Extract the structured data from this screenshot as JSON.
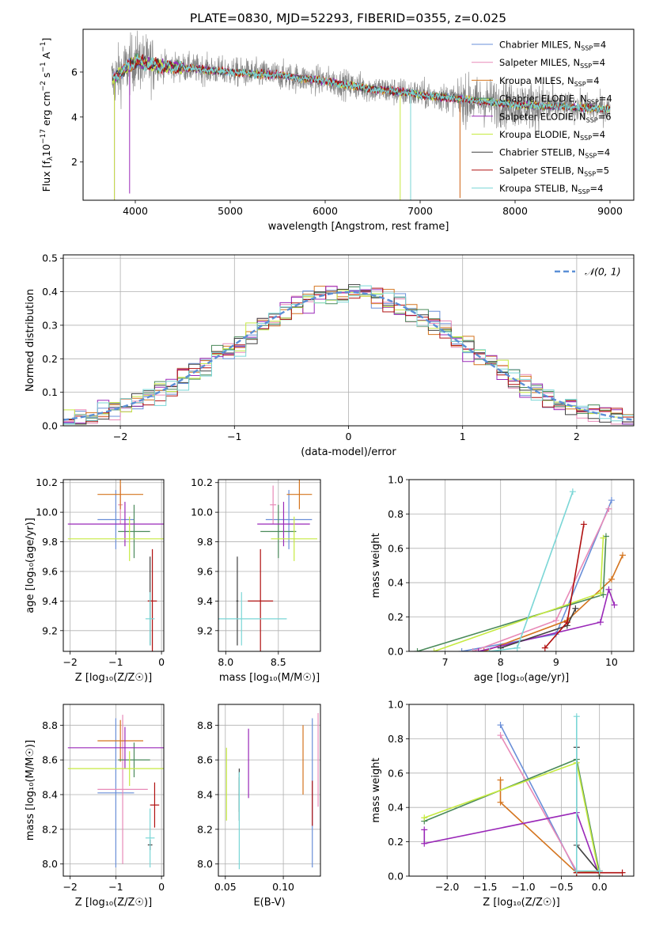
{
  "figure": {
    "title": "PLATE=0830, MJD=52293, FIBERID=0355, z=0.025"
  },
  "models": [
    {
      "name": "Chabrier MILES",
      "nssp": "4",
      "color": "#6a8fd8"
    },
    {
      "name": "Salpeter MILES",
      "nssp": "4",
      "color": "#e88ab8"
    },
    {
      "name": "Kroupa MILES",
      "nssp": "4",
      "color": "#d4741e"
    },
    {
      "name": "Chabrier ELODIE",
      "nssp": "4",
      "color": "#4a8a5a"
    },
    {
      "name": "Salpeter ELODIE",
      "nssp": "6",
      "color": "#9a28b8"
    },
    {
      "name": "Kroupa ELODIE",
      "nssp": "4",
      "color": "#c6ea40"
    },
    {
      "name": "Chabrier STELIB",
      "nssp": "4",
      "color": "#404040"
    },
    {
      "name": "Salpeter STELIB",
      "nssp": "5",
      "color": "#b01010"
    },
    {
      "name": "Kroupa STELIB",
      "nssp": "4",
      "color": "#7ad6d6"
    }
  ],
  "chart_data": [
    {
      "id": "spectrum",
      "type": "line",
      "xlabel": "wavelength [Angstrom, rest frame]",
      "ylabel_parts": [
        "Flux [f",
        "λ",
        "10",
        "−17",
        " erg cm",
        "−2",
        " s",
        "−1",
        " A",
        "−1",
        "]"
      ],
      "xlim": [
        3450,
        9250
      ],
      "ylim": [
        0.3,
        7.9
      ],
      "xticks": [
        4000,
        5000,
        6000,
        7000,
        8000,
        9000
      ],
      "yticks": [
        2,
        4,
        6
      ],
      "legend_position": "upper right",
      "observed_color": "#808080",
      "anchors": [
        {
          "x": 3750,
          "y": 5.6
        },
        {
          "x": 3850,
          "y": 6.0
        },
        {
          "x": 4000,
          "y": 6.5
        },
        {
          "x": 4200,
          "y": 6.3
        },
        {
          "x": 4500,
          "y": 6.2
        },
        {
          "x": 5000,
          "y": 6.0
        },
        {
          "x": 5500,
          "y": 5.85
        },
        {
          "x": 6000,
          "y": 5.6
        },
        {
          "x": 6500,
          "y": 5.25
        },
        {
          "x": 7000,
          "y": 5.0
        },
        {
          "x": 7500,
          "y": 4.75
        },
        {
          "x": 8000,
          "y": 4.55
        },
        {
          "x": 8500,
          "y": 4.45
        },
        {
          "x": 9000,
          "y": 4.35
        }
      ]
    },
    {
      "id": "residuals",
      "type": "step",
      "xlabel": "(data-model)/error",
      "ylabel": "Normed distribution",
      "xlim": [
        -2.5,
        2.5
      ],
      "ylim": [
        0,
        0.51
      ],
      "xticks": [
        -2,
        -1,
        0,
        1,
        2
      ],
      "xticklabels": [
        "−2",
        "−1",
        "0",
        "1",
        "2"
      ],
      "yticks": [
        0.0,
        0.1,
        0.2,
        0.3,
        0.4,
        0.5
      ],
      "yticklabels": [
        "0.0",
        "0.1",
        "0.2",
        "0.3",
        "0.4",
        "0.5"
      ],
      "grid": true,
      "legend": {
        "label": "𝒩(0, 1)",
        "position": "upper right",
        "color": "#5b8fd6"
      }
    },
    {
      "id": "age_vs_Z",
      "type": "scatter",
      "xlabel": "Z [log₁₀(Z/Z☉)]",
      "ylabel": "age  [log₁₀(age/yr)]",
      "xlim": [
        -2.15,
        0.05
      ],
      "ylim": [
        9.06,
        10.22
      ],
      "xticks": [
        -2,
        -1,
        0
      ],
      "xticklabels": [
        "−2",
        "−1",
        "0"
      ],
      "yticks": [
        9.2,
        9.4,
        9.6,
        9.8,
        10.0,
        10.2
      ],
      "yticklabels": [
        "9.2",
        "9.4",
        "9.6",
        "9.8",
        "10.0",
        "10.2"
      ],
      "grid": true,
      "points": [
        {
          "m": 0,
          "x": -1.0,
          "y": 9.95,
          "xerr": 0.4,
          "yerr": 0.2
        },
        {
          "m": 1,
          "x": -0.9,
          "y": 10.05,
          "xerr": 0.05,
          "yerr": 0.13
        },
        {
          "m": 2,
          "x": -0.9,
          "y": 10.12,
          "xerr": 0.5,
          "yerr": 0.1
        },
        {
          "m": 3,
          "x": -0.6,
          "y": 9.87,
          "xerr": 0.35,
          "yerr": 0.18
        },
        {
          "m": 4,
          "x": -0.8,
          "y": 9.92,
          "xerr": 1.25,
          "yerr": 0.15
        },
        {
          "m": 5,
          "x": -0.7,
          "y": 9.82,
          "xerr": 1.35,
          "yerr": 0.15
        },
        {
          "m": 6,
          "x": -0.25,
          "y": 9.4,
          "xerr": 0.05,
          "yerr": 0.3
        },
        {
          "m": 7,
          "x": -0.2,
          "y": 9.4,
          "xerr": 0.1,
          "yerr": 0.35
        },
        {
          "m": 8,
          "x": -0.25,
          "y": 9.28,
          "xerr": 0.1,
          "yerr": 0.18
        }
      ]
    },
    {
      "id": "age_vs_mass",
      "type": "scatter",
      "xlabel": "mass [log₁₀(M/M☉)]",
      "ylabel": "",
      "xlim": [
        7.93,
        8.9
      ],
      "ylim": [
        9.06,
        10.22
      ],
      "xticks": [
        8.0,
        8.5
      ],
      "xticklabels": [
        "8.0",
        "8.5"
      ],
      "yticks": [
        9.2,
        9.4,
        9.6,
        9.8,
        10.0,
        10.2
      ],
      "yticklabels": [
        "9.2",
        "9.4",
        "9.6",
        "9.8",
        "10.0",
        "10.2"
      ],
      "grid": true,
      "points": [
        {
          "m": 0,
          "x": 8.6,
          "y": 9.95,
          "xerr": 0.22,
          "yerr": 0.2
        },
        {
          "m": 1,
          "x": 8.45,
          "y": 10.05,
          "xerr": 0.03,
          "yerr": 0.13
        },
        {
          "m": 2,
          "x": 8.7,
          "y": 10.12,
          "xerr": 0.12,
          "yerr": 0.1
        },
        {
          "m": 3,
          "x": 8.5,
          "y": 9.87,
          "xerr": 0.17,
          "yerr": 0.18
        },
        {
          "m": 4,
          "x": 8.55,
          "y": 9.92,
          "xerr": 0.25,
          "yerr": 0.15
        },
        {
          "m": 5,
          "x": 8.65,
          "y": 9.82,
          "xerr": 0.22,
          "yerr": 0.15
        },
        {
          "m": 6,
          "x": 8.11,
          "y": 9.4,
          "xerr": 0.01,
          "yerr": 0.3
        },
        {
          "m": 7,
          "x": 8.33,
          "y": 9.4,
          "xerr": 0.12,
          "yerr": 0.35
        },
        {
          "m": 8,
          "x": 8.15,
          "y": 9.28,
          "xerr": 0.43,
          "yerr": 0.18
        }
      ]
    },
    {
      "id": "weight_vs_age",
      "type": "line",
      "xlabel": "age  [log₁₀(age/yr)]",
      "ylabel": "mass weight",
      "xlim": [
        6.35,
        10.4
      ],
      "ylim": [
        0,
        1
      ],
      "xticks": [
        7,
        8,
        9,
        10
      ],
      "xticklabels": [
        "7",
        "8",
        "9",
        "10"
      ],
      "yticks": [
        0.0,
        0.2,
        0.4,
        0.6,
        0.8,
        1.0
      ],
      "yticklabels": [
        "0.0",
        "0.2",
        "0.4",
        "0.6",
        "0.8",
        "1.0"
      ],
      "grid": true,
      "series": [
        {
          "m": 0,
          "points": [
            [
              7.3,
              0.0
            ],
            [
              9.0,
              0.1
            ],
            [
              10.0,
              0.88
            ]
          ]
        },
        {
          "m": 1,
          "points": [
            [
              7.5,
              0.0
            ],
            [
              9.0,
              0.18
            ],
            [
              9.95,
              0.83
            ]
          ]
        },
        {
          "m": 2,
          "points": [
            [
              7.7,
              0.0
            ],
            [
              9.2,
              0.18
            ],
            [
              10.0,
              0.42
            ],
            [
              10.2,
              0.56
            ]
          ]
        },
        {
          "m": 3,
          "points": [
            [
              6.5,
              0.0
            ],
            [
              9.85,
              0.33
            ],
            [
              9.9,
              0.67
            ]
          ]
        },
        {
          "m": 4,
          "points": [
            [
              7.6,
              0.0
            ],
            [
              9.8,
              0.17
            ],
            [
              9.95,
              0.36
            ],
            [
              10.05,
              0.27
            ]
          ]
        },
        {
          "m": 5,
          "points": [
            [
              6.8,
              0.0
            ],
            [
              9.8,
              0.34
            ],
            [
              9.85,
              0.66
            ]
          ]
        },
        {
          "m": 6,
          "points": [
            [
              8.0,
              0.02
            ],
            [
              9.2,
              0.15
            ],
            [
              9.35,
              0.25
            ]
          ]
        },
        {
          "m": 7,
          "points": [
            [
              8.8,
              0.02
            ],
            [
              9.2,
              0.17
            ],
            [
              9.5,
              0.74
            ]
          ]
        },
        {
          "m": 8,
          "points": [
            [
              7.8,
              0.0
            ],
            [
              8.3,
              0.02
            ],
            [
              9.3,
              0.93
            ]
          ]
        }
      ]
    },
    {
      "id": "mass_vs_Z",
      "type": "scatter",
      "xlabel": "Z [log₁₀(Z/Z☉)]",
      "ylabel": "mass [log₁₀(M/M☉)]",
      "xlim": [
        -2.15,
        0.05
      ],
      "ylim": [
        7.93,
        8.92
      ],
      "xticks": [
        -2,
        -1,
        0
      ],
      "xticklabels": [
        "−2",
        "−1",
        "0"
      ],
      "yticks": [
        8.0,
        8.2,
        8.4,
        8.6,
        8.8
      ],
      "yticklabels": [
        "8.0",
        "8.2",
        "8.4",
        "8.6",
        "8.8"
      ],
      "grid": true,
      "points": [
        {
          "m": 0,
          "x": -1.0,
          "y": 8.41,
          "xerr": 0.4,
          "yerr": 0.43
        },
        {
          "m": 1,
          "x": -0.85,
          "y": 8.43,
          "xerr": 0.55,
          "yerr": 0.43
        },
        {
          "m": 2,
          "x": -0.9,
          "y": 8.71,
          "xerr": 0.5,
          "yerr": 0.12
        },
        {
          "m": 3,
          "x": -0.6,
          "y": 8.6,
          "xerr": 0.35,
          "yerr": 0.1
        },
        {
          "m": 4,
          "x": -0.8,
          "y": 8.67,
          "xerr": 1.25,
          "yerr": 0.12
        },
        {
          "m": 5,
          "x": -0.7,
          "y": 8.55,
          "xerr": 1.35,
          "yerr": 0.1
        },
        {
          "m": 6,
          "x": -0.25,
          "y": 8.11,
          "xerr": 0.05,
          "yerr": 0.03
        },
        {
          "m": 7,
          "x": -0.15,
          "y": 8.34,
          "xerr": 0.1,
          "yerr": 0.13
        },
        {
          "m": 8,
          "x": -0.25,
          "y": 8.15,
          "xerr": 0.1,
          "yerr": 0.17
        }
      ]
    },
    {
      "id": "mass_vs_ebv",
      "type": "scatter",
      "xlabel": "E(B-V)",
      "ylabel": "",
      "xlim": [
        0.044,
        0.132
      ],
      "ylim": [
        7.93,
        8.92
      ],
      "xticks": [
        0.05,
        0.1
      ],
      "xticklabels": [
        "0.05",
        "0.10"
      ],
      "yticks": [
        8.0,
        8.2,
        8.4,
        8.6,
        8.8
      ],
      "yticklabels": [
        "8.0",
        "8.2",
        "8.4",
        "8.6",
        "8.8"
      ],
      "grid": true,
      "points": [
        {
          "m": 0,
          "x": 0.125,
          "y": 8.41,
          "xerr": 0,
          "yerr": 0.43
        },
        {
          "m": 1,
          "x": 0.13,
          "y": 8.6,
          "xerr": 0,
          "yerr": 0.27
        },
        {
          "m": 2,
          "x": 0.117,
          "y": 8.6,
          "xerr": 0,
          "yerr": 0.2
        },
        {
          "m": 3,
          "x": 0.062,
          "y": 8.4,
          "xerr": 0,
          "yerr": 0.1
        },
        {
          "m": 4,
          "x": 0.07,
          "y": 8.58,
          "xerr": 0,
          "yerr": 0.2
        },
        {
          "m": 5,
          "x": 0.051,
          "y": 8.46,
          "xerr": 0,
          "yerr": 0.21
        },
        {
          "m": 6,
          "x": 0.062,
          "y": 8.4,
          "xerr": 0,
          "yerr": 0.15
        },
        {
          "m": 7,
          "x": 0.125,
          "y": 8.35,
          "xerr": 0,
          "yerr": 0.13
        },
        {
          "m": 8,
          "x": 0.062,
          "y": 8.25,
          "xerr": 0,
          "yerr": 0.28
        }
      ]
    },
    {
      "id": "weight_vs_Z",
      "type": "line",
      "xlabel": "Z [log₁₀(Z/Z☉)]",
      "ylabel": "mass weight",
      "xlim": [
        -2.5,
        0.45
      ],
      "ylim": [
        0,
        1
      ],
      "xticks": [
        -2.0,
        -1.5,
        -1.0,
        -0.5,
        0.0
      ],
      "xticklabels": [
        "−2.0",
        "−1.5",
        "−1.0",
        "−0.5",
        "0.0"
      ],
      "yticks": [
        0.0,
        0.2,
        0.4,
        0.6,
        0.8,
        1.0
      ],
      "yticklabels": [
        "0.0",
        "0.2",
        "0.4",
        "0.6",
        "0.8",
        "1.0"
      ],
      "grid": true,
      "series": [
        {
          "m": 0,
          "points": [
            [
              -1.3,
              0.88
            ],
            [
              -0.3,
              0.02
            ],
            [
              0.0,
              0.03
            ]
          ]
        },
        {
          "m": 1,
          "points": [
            [
              -1.3,
              0.82
            ],
            [
              -0.3,
              0.03
            ],
            [
              0.0,
              0.02
            ]
          ]
        },
        {
          "m": 2,
          "points": [
            [
              -1.3,
              0.56
            ],
            [
              -1.3,
              0.43
            ],
            [
              -0.3,
              0.02
            ],
            [
              0.0,
              0.03
            ]
          ]
        },
        {
          "m": 3,
          "points": [
            [
              -2.3,
              0.32
            ],
            [
              -0.3,
              0.68
            ],
            [
              0.0,
              0.02
            ]
          ]
        },
        {
          "m": 4,
          "points": [
            [
              -2.3,
              0.27
            ],
            [
              -2.3,
              0.19
            ],
            [
              -0.3,
              0.37
            ],
            [
              0.0,
              0.0
            ]
          ]
        },
        {
          "m": 5,
          "points": [
            [
              -2.3,
              0.34
            ],
            [
              -0.3,
              0.66
            ],
            [
              0.0,
              0.0
            ]
          ]
        },
        {
          "m": 6,
          "points": [
            [
              -0.3,
              0.75
            ],
            [
              -0.3,
              0.18
            ],
            [
              0.0,
              0.02
            ]
          ]
        },
        {
          "m": 7,
          "points": [
            [
              -0.3,
              0.02
            ],
            [
              0.3,
              0.02
            ]
          ]
        },
        {
          "m": 8,
          "points": [
            [
              -0.3,
              0.93
            ],
            [
              -0.3,
              0.03
            ],
            [
              0.0,
              0.03
            ]
          ]
        }
      ]
    }
  ]
}
